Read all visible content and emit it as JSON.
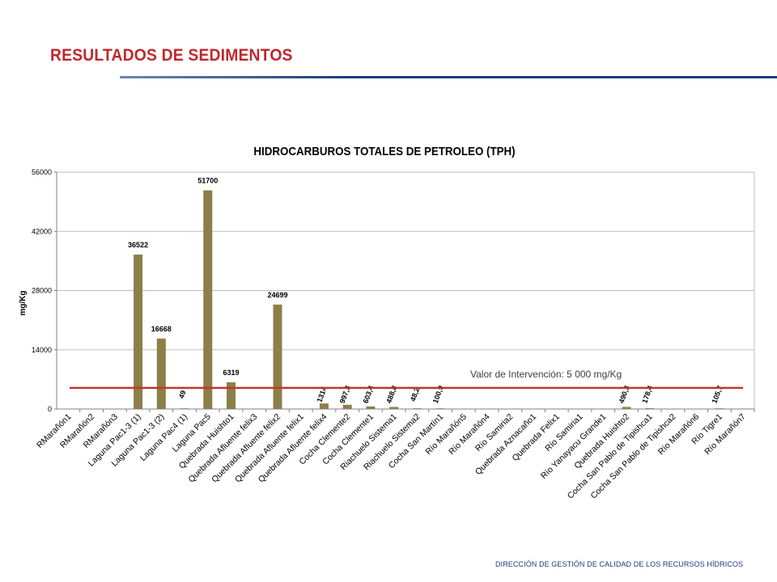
{
  "page": {
    "title": "RESULTADOS DE SEDIMENTOS",
    "footer": "DIRECCIÓN DE GESTIÓN DE CALIDAD DE LOS RECURSOS HÍDRICOS"
  },
  "colors": {
    "title": "#c0282d",
    "rule": "#1f3b7a",
    "bar": "#8c7f48",
    "reference_line": "#c0392b",
    "grid": "#bdbdbd"
  },
  "chart_data": {
    "type": "bar",
    "title": "HIDROCARBUROS TOTALES DE PETROLEO (TPH)",
    "xlabel": "",
    "ylabel": "mg/Kg",
    "ylim": [
      0,
      56000
    ],
    "yticks": [
      0,
      14000,
      28000,
      42000,
      56000
    ],
    "grid": true,
    "categories": [
      "RMarañón1",
      "RMarañón2",
      "RMarañón3",
      "Laguna Pac1-3 (1)",
      "Laguna Pac1-3 (2)",
      "Laguna Pac4 (1)",
      "Laguna Pac5",
      "Quebrada Huishto1",
      "Quebrada Afluente felix3",
      "Quebrada Afluente felix2",
      "Quebrada Afluente felix1",
      "Quebrada Afluente felix4",
      "Cocha Clemente2",
      "Cocha Clemente1",
      "Riachuelo Sistema1",
      "Riachuelo Sistema2",
      "Cocha San Martín1",
      "Río Marañón5",
      "Río Marañón4",
      "Río Samiria2",
      "Quebrada Aznacaño1",
      "Quebrada Felix1",
      "Río Samiria1",
      "Río Yanayacu Grande1",
      "Quebrada Huishto2",
      "Cocha San Pablo de Tipishca1",
      "Cocha San Pablo de Tipishca2",
      "Río Marañón6",
      "Río Tigre1",
      "Río Marañón7"
    ],
    "values": [
      null,
      null,
      null,
      36522,
      16668,
      49,
      51700,
      6319,
      null,
      24699,
      null,
      1314,
      997.3,
      603.4,
      488.8,
      48.2,
      100.9,
      null,
      null,
      null,
      null,
      null,
      null,
      null,
      490.3,
      178.4,
      null,
      null,
      105.7,
      null
    ],
    "data_labels": [
      "",
      "",
      "",
      "36522",
      "16668",
      "49",
      "51700",
      "6319",
      "",
      "24699",
      "",
      "1314",
      "997,3",
      "603,4",
      "488,8",
      "48,2",
      "100,9",
      "",
      "",
      "",
      "",
      "",
      "",
      "",
      "490,3",
      "178,4",
      "",
      "",
      "105,7",
      ""
    ],
    "reference_line": {
      "value": 5000,
      "label": "Valor de Intervención: 5 000 mg/Kg"
    }
  }
}
